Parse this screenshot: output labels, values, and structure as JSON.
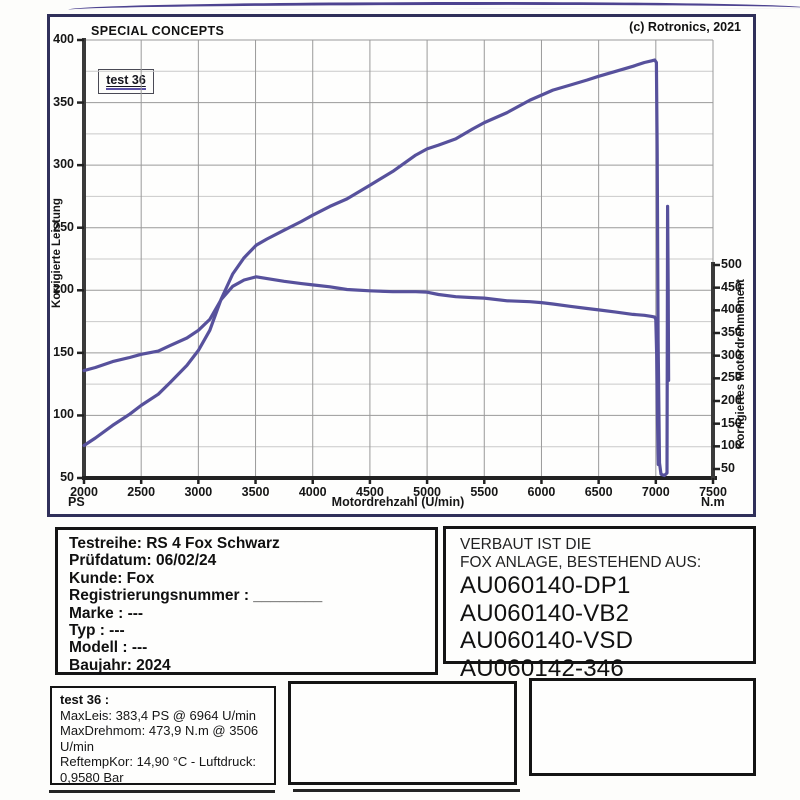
{
  "header": {
    "brand": "SPECIAL CONCEPTS",
    "copyright": "(c) Rotronics, 2021"
  },
  "chart": {
    "run_label": "test 36",
    "line_color": "#57519c",
    "grid_major_color": "#9a9a9a",
    "grid_minor_color": "#c9c9c9",
    "axis_color": "#333333",
    "x_axis": {
      "title": "Motordrehzahl (U/min)",
      "min": 2000,
      "max": 7500,
      "ticks": [
        2000,
        2500,
        3000,
        3500,
        4000,
        4500,
        5000,
        5500,
        6000,
        6500,
        7000,
        7500
      ],
      "left_unit": "PS",
      "right_unit": "N.m"
    },
    "left_axis": {
      "title": "Korrigierte Leistung",
      "min": 50,
      "max": 400,
      "ticks": [
        400,
        350,
        300,
        250,
        200,
        150,
        100,
        50
      ]
    },
    "right_axis": {
      "title": "Korrigiertes Motordrehmoment",
      "min": 50,
      "max": 500,
      "ticks": [
        500,
        450,
        400,
        350,
        300,
        250,
        200,
        150,
        100,
        50
      ]
    }
  },
  "chart_data": {
    "type": "line",
    "title": "",
    "xlabel": "Motordrehzahl (U/min)",
    "ylabel_left": "Korrigierte Leistung (PS)",
    "ylabel_right": "Korrigiertes Motordrehmoment (N.m)",
    "x_range": [
      2000,
      7500
    ],
    "y_left_range": [
      50,
      400
    ],
    "y_right_range": [
      50,
      500
    ],
    "grid": true,
    "legend_position": "none",
    "series": [
      {
        "name": "Leistung (PS)",
        "axis": "left",
        "points": [
          [
            2000,
            76
          ],
          [
            2100,
            82
          ],
          [
            2250,
            92
          ],
          [
            2400,
            101
          ],
          [
            2500,
            108
          ],
          [
            2650,
            117
          ],
          [
            2750,
            126
          ],
          [
            2900,
            140
          ],
          [
            3000,
            152
          ],
          [
            3100,
            168
          ],
          [
            3200,
            193
          ],
          [
            3300,
            213
          ],
          [
            3400,
            226
          ],
          [
            3506,
            236
          ],
          [
            3600,
            241
          ],
          [
            3750,
            248
          ],
          [
            3900,
            255
          ],
          [
            4000,
            260
          ],
          [
            4150,
            267
          ],
          [
            4300,
            273
          ],
          [
            4500,
            284
          ],
          [
            4700,
            295
          ],
          [
            4900,
            308
          ],
          [
            5000,
            313
          ],
          [
            5100,
            316
          ],
          [
            5250,
            321
          ],
          [
            5400,
            329
          ],
          [
            5500,
            334
          ],
          [
            5700,
            342
          ],
          [
            5900,
            352
          ],
          [
            6000,
            356
          ],
          [
            6100,
            360
          ],
          [
            6250,
            364
          ],
          [
            6400,
            368
          ],
          [
            6500,
            371
          ],
          [
            6650,
            375
          ],
          [
            6800,
            379
          ],
          [
            6900,
            382
          ],
          [
            6964,
            383.4
          ],
          [
            6990,
            384
          ],
          [
            7005,
            382
          ],
          [
            7012,
            310
          ],
          [
            7020,
            160
          ],
          [
            7032,
            62
          ],
          [
            7045,
            53
          ],
          [
            7075,
            52
          ],
          [
            7098,
            54
          ],
          [
            7103,
            267
          ],
          [
            7108,
            200
          ],
          [
            7112,
            128
          ]
        ]
      },
      {
        "name": "Drehmoment (N.m)",
        "axis": "right",
        "points": [
          [
            2000,
            267
          ],
          [
            2100,
            274
          ],
          [
            2250,
            287
          ],
          [
            2400,
            296
          ],
          [
            2500,
            303
          ],
          [
            2650,
            310
          ],
          [
            2750,
            322
          ],
          [
            2900,
            339
          ],
          [
            3000,
            356
          ],
          [
            3100,
            380
          ],
          [
            3200,
            424
          ],
          [
            3300,
            453
          ],
          [
            3400,
            467
          ],
          [
            3506,
            473.9
          ],
          [
            3600,
            470
          ],
          [
            3750,
            464
          ],
          [
            3900,
            459
          ],
          [
            4000,
            456
          ],
          [
            4150,
            452
          ],
          [
            4300,
            446
          ],
          [
            4500,
            443
          ],
          [
            4700,
            441
          ],
          [
            4900,
            441
          ],
          [
            5000,
            440
          ],
          [
            5100,
            435
          ],
          [
            5250,
            430
          ],
          [
            5400,
            428
          ],
          [
            5500,
            427
          ],
          [
            5700,
            421
          ],
          [
            5900,
            419
          ],
          [
            6000,
            417
          ],
          [
            6100,
            414
          ],
          [
            6250,
            409
          ],
          [
            6400,
            404
          ],
          [
            6500,
            401
          ],
          [
            6650,
            396
          ],
          [
            6800,
            391
          ],
          [
            6900,
            389
          ],
          [
            6964,
            386.7
          ],
          [
            6990,
            385
          ],
          [
            7000,
            380
          ],
          [
            7008,
            300
          ],
          [
            7015,
            160
          ],
          [
            7022,
            60
          ]
        ]
      }
    ],
    "annotations": {
      "max_power": "383,4 PS @ 6964 U/min",
      "max_torque": "473,9 N.m @ 3506 U/min"
    }
  },
  "vehicle_box": {
    "lines": [
      "Testreihe: RS 4 Fox Schwarz",
      "Prüfdatum: 06/02/24",
      "Kunde: Fox",
      "Registrierungsnummer  : ________",
      "Marke  : ---",
      "Typ  : ---",
      "Modell  : ---",
      "Baujahr: 2024"
    ]
  },
  "parts_box": {
    "line1": "VERBAUT IST DIE",
    "line2": "FOX ANLAGE, BESTEHEND AUS:",
    "parts": [
      "AU060140-DP1",
      "AU060140-VB2",
      "AU060140-VSD",
      "AU060142-346"
    ]
  },
  "results_box": {
    "title": "test 36 :",
    "lines": [
      "MaxLeis: 383,4 PS @ 6964 U/min",
      "MaxDrehmom: 473,9 N.m @ 3506 U/min",
      "ReftempKor: 14,90 °C - Luftdruck: 0,9580 Bar"
    ]
  }
}
